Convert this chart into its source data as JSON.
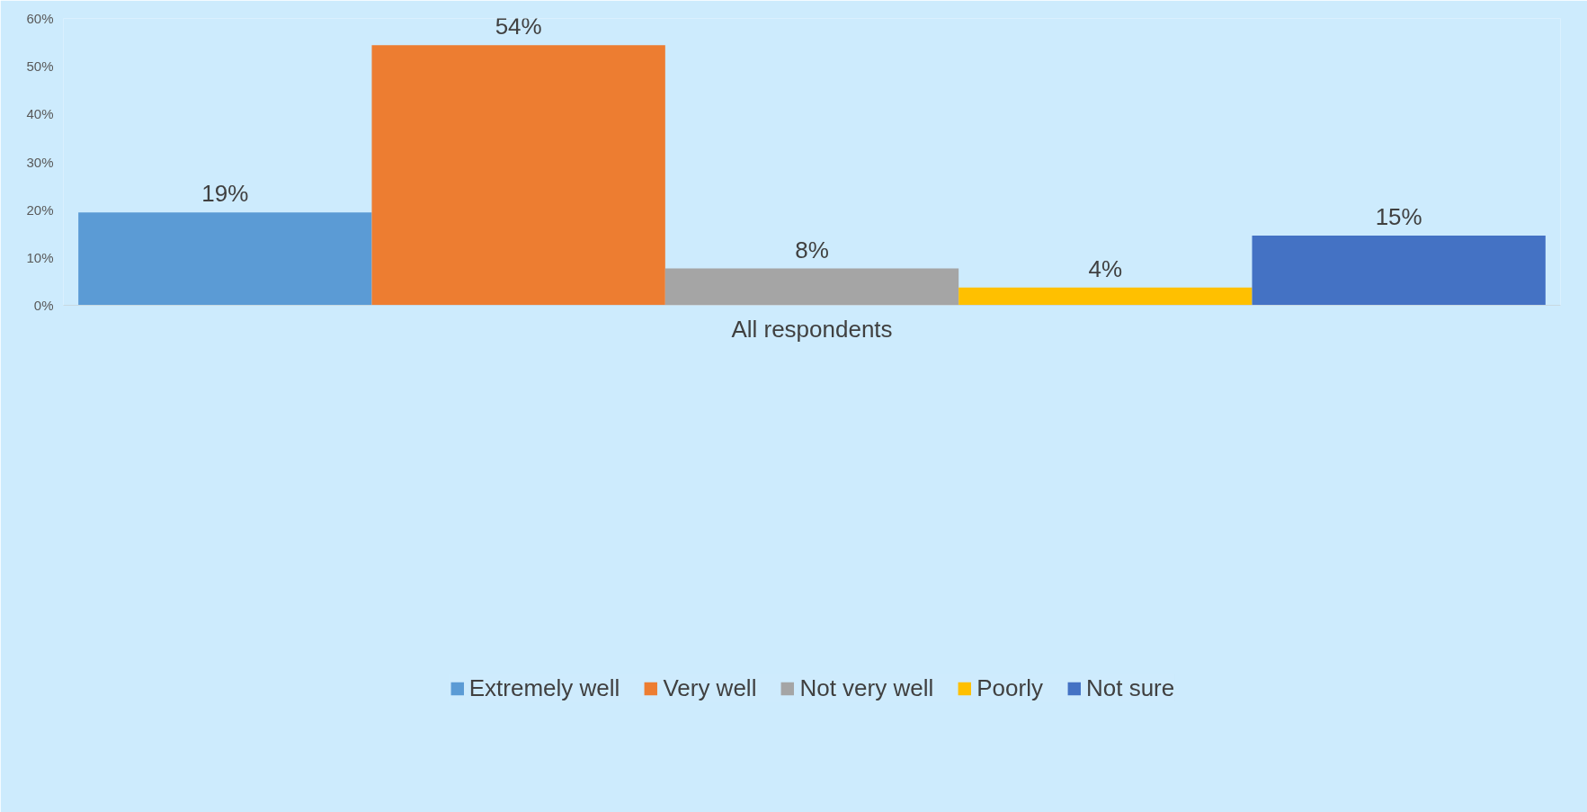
{
  "chart_data": {
    "type": "bar",
    "categories": [
      "All respondents"
    ],
    "series": [
      {
        "name": "Extremely well",
        "color": "#5b9bd5",
        "values": [
          19.4
        ],
        "value_labels": [
          "19%"
        ]
      },
      {
        "name": "Very well",
        "color": "#ed7d31",
        "values": [
          54.4
        ],
        "value_labels": [
          "54%"
        ]
      },
      {
        "name": "Not very well",
        "color": "#a5a5a5",
        "values": [
          7.7
        ],
        "value_labels": [
          "8%"
        ]
      },
      {
        "name": "Poorly",
        "color": "#ffc000",
        "values": [
          3.7
        ],
        "value_labels": [
          "4%"
        ]
      },
      {
        "name": "Not sure",
        "color": "#4472c4",
        "values": [
          14.6
        ],
        "value_labels": [
          "15%"
        ]
      }
    ],
    "ylim": [
      0,
      60
    ],
    "yticks": [
      {
        "value": 0,
        "label": "0%"
      },
      {
        "value": 10,
        "label": "10%"
      },
      {
        "value": 20,
        "label": "20%"
      },
      {
        "value": 30,
        "label": "30%"
      },
      {
        "value": 40,
        "label": "40%"
      },
      {
        "value": 50,
        "label": "50%"
      },
      {
        "value": 60,
        "label": "60%"
      }
    ],
    "grid": false,
    "legend": "bottom"
  }
}
